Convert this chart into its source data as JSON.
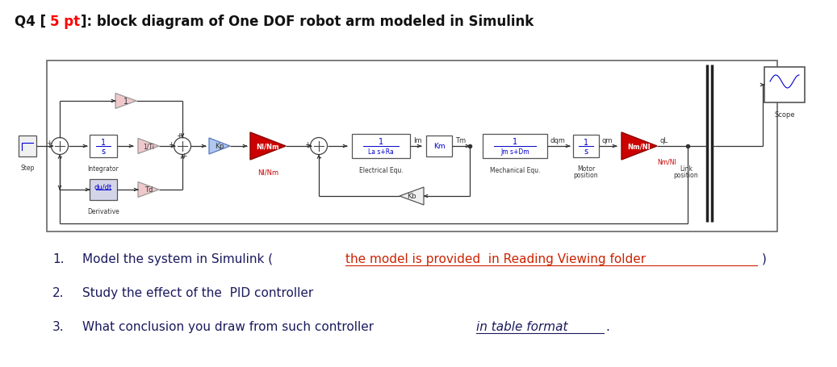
{
  "title_fontsize": 12,
  "bg_color": "#ffffff",
  "list_fontsize": 11,
  "list_color": "#1a1a5e",
  "list_red": "#cc2200",
  "diagram_border": "#666666",
  "block_edge": "#555555",
  "signal_color": "#0000cc",
  "line_color": "#333333",
  "red_gain_fc": "#cc0000",
  "red_gain_ec": "#880000",
  "pink_gain_fc": "#f0c8cc",
  "pink_gain_ec": "#999999",
  "blue_gain_fc": "#b0c8f0",
  "blue_gain_ec": "#5577bb",
  "scope_label": "Scope",
  "step_label": "Step",
  "integrator_label": "Integrator",
  "deriv_label": "Derivative",
  "elec_label": "Electrical Equ.",
  "mech_label": "Mechanical Equ.",
  "motor_label1": "Motor",
  "motor_label2": "position",
  "link_label1": "Link",
  "link_label2": "position",
  "nlnm_label": "Nl/Nm",
  "nmnl_label": "Nm/Nl"
}
